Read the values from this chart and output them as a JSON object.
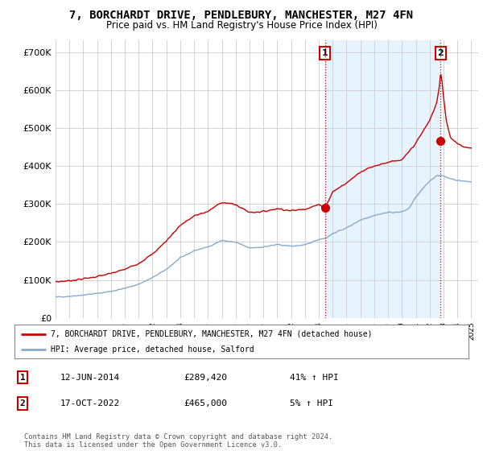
{
  "title": "7, BORCHARDT DRIVE, PENDLEBURY, MANCHESTER, M27 4FN",
  "subtitle": "Price paid vs. HM Land Registry's House Price Index (HPI)",
  "title_fontsize": 10,
  "subtitle_fontsize": 8.5,
  "ylabel_ticks": [
    "£0",
    "£100K",
    "£200K",
    "£300K",
    "£400K",
    "£500K",
    "£600K",
    "£700K"
  ],
  "ytick_vals": [
    0,
    100000,
    200000,
    300000,
    400000,
    500000,
    600000,
    700000
  ],
  "ylim": [
    0,
    730000
  ],
  "xlim_start": 1995.0,
  "xlim_end": 2025.5,
  "grid_color": "#cccccc",
  "bg_color": "#ffffff",
  "shade_color": "#ddeeff",
  "red_line_color": "#cc0000",
  "blue_line_color": "#88aacc",
  "marker1_date": 2014.45,
  "marker1_price": 289420,
  "marker2_date": 2022.79,
  "marker2_price": 465000,
  "vline_color": "#cc0000",
  "vline_style": ":",
  "legend_label1": "7, BORCHARDT DRIVE, PENDLEBURY, MANCHESTER, M27 4FN (detached house)",
  "legend_label2": "HPI: Average price, detached house, Salford",
  "annotation1_label": "1",
  "annotation2_label": "2",
  "table_row1": [
    "1",
    "12-JUN-2014",
    "£289,420",
    "41% ↑ HPI"
  ],
  "table_row2": [
    "2",
    "17-OCT-2022",
    "£465,000",
    "5% ↑ HPI"
  ],
  "footer": "Contains HM Land Registry data © Crown copyright and database right 2024.\nThis data is licensed under the Open Government Licence v3.0."
}
